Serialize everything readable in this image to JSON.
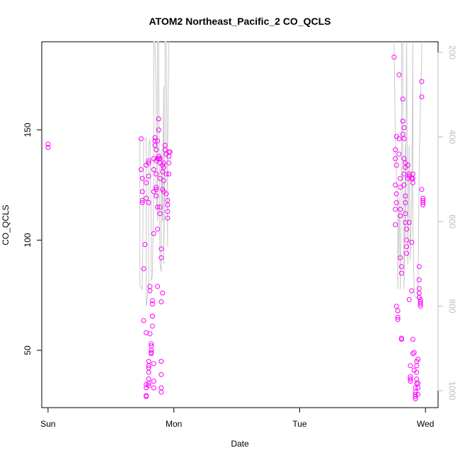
{
  "chart_data": {
    "type": "scatter",
    "title": "ATOM2 Northeast_Pacific_2 CO_QCLS",
    "xlabel": "Date",
    "ylabel": "CO_QCLS",
    "x_ticks": [
      "Sun",
      "Mon",
      "Tue",
      "Wed"
    ],
    "y_ticks": [
      50,
      100,
      150
    ],
    "y2_ticks": [
      200,
      400,
      600,
      800,
      1000
    ],
    "xlim_days": [
      -0.05,
      3.1
    ],
    "ylim": [
      24,
      190
    ],
    "y2lim_reversed": [
      175,
      1040
    ],
    "colors": {
      "points": "#ff00ff",
      "pressure_line": "#c8c8c8",
      "right_axis": "#bdbdbd"
    },
    "series": [
      {
        "marker": "circle",
        "points": [
          [
            0.0,
            142
          ],
          [
            0.0,
            143.5
          ],
          [
            0.74,
            146
          ],
          [
            0.74,
            132
          ],
          [
            0.75,
            128
          ],
          [
            0.75,
            122
          ],
          [
            0.75,
            118
          ],
          [
            0.75,
            117
          ],
          [
            0.76,
            87
          ],
          [
            0.76,
            63.5
          ],
          [
            0.77,
            98
          ],
          [
            0.78,
            134
          ],
          [
            0.78,
            126
          ],
          [
            0.78,
            119
          ],
          [
            0.78,
            58
          ],
          [
            0.8,
            136
          ],
          [
            0.8,
            135
          ],
          [
            0.8,
            129
          ],
          [
            0.8,
            117
          ],
          [
            0.81,
            79
          ],
          [
            0.81,
            77
          ],
          [
            0.81,
            57.5
          ],
          [
            0.8,
            45
          ],
          [
            0.8,
            43
          ],
          [
            0.8,
            42
          ],
          [
            0.8,
            40
          ],
          [
            0.8,
            37
          ],
          [
            0.8,
            35
          ],
          [
            0.8,
            34
          ],
          [
            0.78,
            29.5
          ],
          [
            0.78,
            29
          ],
          [
            0.78,
            33
          ],
          [
            0.78,
            34.5
          ],
          [
            0.82,
            53
          ],
          [
            0.82,
            52
          ],
          [
            0.82,
            50
          ],
          [
            0.82,
            49
          ],
          [
            0.82,
            48.5
          ],
          [
            0.83,
            61
          ],
          [
            0.83,
            65.5
          ],
          [
            0.83,
            65.5
          ],
          [
            0.83,
            72.5
          ],
          [
            0.83,
            71
          ],
          [
            0.84,
            137
          ],
          [
            0.84,
            132
          ],
          [
            0.84,
            122
          ],
          [
            0.84,
            103
          ],
          [
            0.84,
            44
          ],
          [
            0.84,
            36
          ],
          [
            0.84,
            33
          ],
          [
            0.85,
            146.5
          ],
          [
            0.85,
            145
          ],
          [
            0.85,
            143
          ],
          [
            0.86,
            141
          ],
          [
            0.86,
            136
          ],
          [
            0.86,
            130
          ],
          [
            0.86,
            124
          ],
          [
            0.86,
            123
          ],
          [
            0.86,
            120
          ],
          [
            0.87,
            115
          ],
          [
            0.87,
            105
          ],
          [
            0.87,
            79
          ],
          [
            0.87,
            145
          ],
          [
            0.87,
            137
          ],
          [
            0.88,
            155
          ],
          [
            0.88,
            150
          ],
          [
            0.88,
            138
          ],
          [
            0.88,
            137
          ],
          [
            0.89,
            137
          ],
          [
            0.89,
            135
          ],
          [
            0.89,
            128
          ],
          [
            0.89,
            115
          ],
          [
            0.89,
            112
          ],
          [
            0.9,
            92
          ],
          [
            0.9,
            96
          ],
          [
            0.9,
            72
          ],
          [
            0.9,
            45
          ],
          [
            0.9,
            39
          ],
          [
            0.9,
            33
          ],
          [
            0.9,
            31
          ],
          [
            0.91,
            76
          ],
          [
            0.91,
            123
          ],
          [
            0.91,
            131
          ],
          [
            0.91,
            134
          ],
          [
            0.92,
            135
          ],
          [
            0.92,
            133
          ],
          [
            0.92,
            127
          ],
          [
            0.92,
            122
          ],
          [
            0.93,
            143
          ],
          [
            0.93,
            141
          ],
          [
            0.94,
            139
          ],
          [
            0.94,
            130
          ],
          [
            0.94,
            121
          ],
          [
            0.95,
            118
          ],
          [
            0.95,
            116
          ],
          [
            0.95,
            113
          ],
          [
            0.95,
            110
          ],
          [
            0.96,
            140
          ],
          [
            0.96,
            138
          ],
          [
            0.96,
            135
          ],
          [
            0.96,
            130
          ],
          [
            0.97,
            140
          ],
          [
            2.75,
            183
          ],
          [
            2.76,
            141
          ],
          [
            2.76,
            137
          ],
          [
            2.76,
            125
          ],
          [
            2.76,
            114
          ],
          [
            2.76,
            107
          ],
          [
            2.77,
            147
          ],
          [
            2.77,
            134
          ],
          [
            2.77,
            121
          ],
          [
            2.77,
            117
          ],
          [
            2.77,
            70
          ],
          [
            2.78,
            68
          ],
          [
            2.78,
            65
          ],
          [
            2.78,
            64
          ],
          [
            2.79,
            175
          ],
          [
            2.79,
            146
          ],
          [
            2.79,
            139
          ],
          [
            2.8,
            128
          ],
          [
            2.8,
            124
          ],
          [
            2.8,
            114
          ],
          [
            2.8,
            111
          ],
          [
            2.8,
            92
          ],
          [
            2.81,
            88
          ],
          [
            2.81,
            85
          ],
          [
            2.81,
            55.5
          ],
          [
            2.81,
            55
          ],
          [
            2.82,
            164
          ],
          [
            2.82,
            154
          ],
          [
            2.82,
            148
          ],
          [
            2.83,
            151
          ],
          [
            2.83,
            146
          ],
          [
            2.83,
            137
          ],
          [
            2.83,
            130
          ],
          [
            2.83,
            125
          ],
          [
            2.84,
            135
          ],
          [
            2.84,
            133
          ],
          [
            2.84,
            120
          ],
          [
            2.84,
            117
          ],
          [
            2.84,
            112
          ],
          [
            2.84,
            108
          ],
          [
            2.85,
            105
          ],
          [
            2.85,
            97
          ],
          [
            2.85,
            100
          ],
          [
            2.85,
            94
          ],
          [
            2.86,
            134
          ],
          [
            2.86,
            128
          ],
          [
            2.87,
            130
          ],
          [
            2.87,
            129
          ],
          [
            2.87,
            108
          ],
          [
            2.87,
            73
          ],
          [
            2.88,
            43
          ],
          [
            2.88,
            38
          ],
          [
            2.88,
            37
          ],
          [
            2.88,
            36
          ],
          [
            2.89,
            77
          ],
          [
            2.89,
            99
          ],
          [
            2.89,
            128
          ],
          [
            2.9,
            130
          ],
          [
            2.9,
            128
          ],
          [
            2.9,
            126
          ],
          [
            2.9,
            48.5
          ],
          [
            2.9,
            55
          ],
          [
            2.91,
            49
          ],
          [
            2.91,
            41
          ],
          [
            2.92,
            33
          ],
          [
            2.92,
            31
          ],
          [
            2.92,
            30
          ],
          [
            2.92,
            29
          ],
          [
            2.92,
            28
          ],
          [
            2.93,
            45
          ],
          [
            2.93,
            43
          ],
          [
            2.93,
            40
          ],
          [
            2.93,
            37
          ],
          [
            2.93,
            35
          ],
          [
            2.94,
            46
          ],
          [
            2.94,
            35
          ],
          [
            2.94,
            33
          ],
          [
            2.94,
            30
          ],
          [
            2.95,
            88
          ],
          [
            2.95,
            82
          ],
          [
            2.95,
            78
          ],
          [
            2.95,
            76
          ],
          [
            2.95,
            74
          ],
          [
            2.96,
            73
          ],
          [
            2.96,
            72
          ],
          [
            2.96,
            71
          ],
          [
            2.96,
            70
          ],
          [
            2.97,
            172
          ],
          [
            2.97,
            165
          ],
          [
            2.97,
            123
          ],
          [
            2.98,
            119
          ],
          [
            2.98,
            118
          ],
          [
            2.98,
            117
          ],
          [
            2.98,
            116
          ]
        ]
      },
      {
        "marker": "line",
        "axis": "right",
        "points": [
          [
            0.73,
            403
          ],
          [
            0.73,
            750
          ],
          [
            0.75,
            760
          ],
          [
            0.76,
            410
          ],
          [
            0.77,
            405
          ],
          [
            0.78,
            402
          ],
          [
            0.78,
            800
          ],
          [
            0.79,
            780
          ],
          [
            0.8,
            740
          ],
          [
            0.8,
            420
          ],
          [
            0.81,
            405
          ],
          [
            0.82,
            600
          ],
          [
            0.82,
            740
          ],
          [
            0.83,
            730
          ],
          [
            0.84,
            500
          ],
          [
            0.84,
            175
          ],
          [
            0.85,
            175
          ],
          [
            0.86,
            300
          ],
          [
            0.86,
            520
          ],
          [
            0.87,
            600
          ],
          [
            0.87,
            175
          ],
          [
            0.88,
            175
          ],
          [
            0.88,
            260
          ],
          [
            0.89,
            700
          ],
          [
            0.9,
            720
          ],
          [
            0.9,
            430
          ],
          [
            0.91,
            600
          ],
          [
            0.91,
            520
          ],
          [
            0.92,
            280
          ],
          [
            0.92,
            700
          ],
          [
            0.93,
            430
          ],
          [
            0.93,
            175
          ],
          [
            0.94,
            175
          ],
          [
            0.95,
            660
          ],
          [
            0.95,
            450
          ],
          [
            0.96,
            175
          ],
          [
            2.75,
            175
          ],
          [
            2.76,
            400
          ],
          [
            2.77,
            500
          ],
          [
            2.78,
            580
          ],
          [
            2.78,
            760
          ],
          [
            2.79,
            540
          ],
          [
            2.8,
            760
          ],
          [
            2.81,
            420
          ],
          [
            2.81,
            180
          ],
          [
            2.82,
            175
          ],
          [
            2.82,
            500
          ],
          [
            2.83,
            760
          ],
          [
            2.84,
            420
          ],
          [
            2.84,
            640
          ],
          [
            2.85,
            175
          ],
          [
            2.86,
            700
          ],
          [
            2.87,
            420
          ],
          [
            2.88,
            690
          ],
          [
            2.89,
            550
          ],
          [
            2.9,
            175
          ],
          [
            2.9,
            600
          ],
          [
            2.91,
            770
          ],
          [
            2.92,
            780
          ],
          [
            2.93,
            780
          ],
          [
            2.94,
            780
          ],
          [
            2.95,
            480
          ],
          [
            2.96,
            320
          ],
          [
            2.97,
            220
          ],
          [
            2.97,
            175
          ]
        ]
      }
    ]
  }
}
